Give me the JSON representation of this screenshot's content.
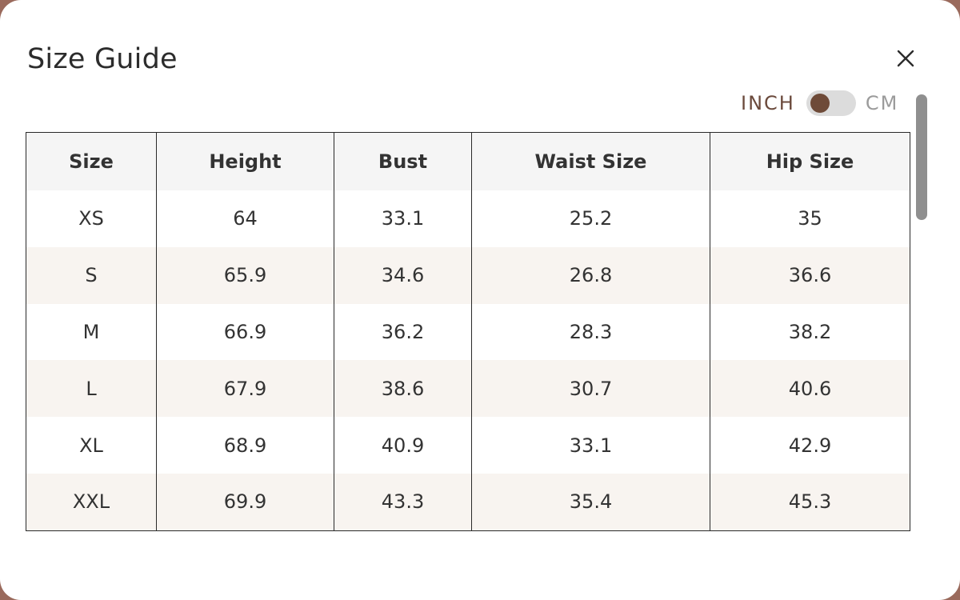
{
  "dialog": {
    "title": "Size Guide",
    "close_icon": "close-icon"
  },
  "units": {
    "inch_label": "INCH",
    "cm_label": "CM",
    "selected": "INCH",
    "accent": "#6e4a38"
  },
  "table": {
    "headers": [
      "Size",
      "Height",
      "Bust",
      "Waist Size",
      "Hip Size"
    ],
    "rows": [
      [
        "XS",
        "64",
        "33.1",
        "25.2",
        "35"
      ],
      [
        "S",
        "65.9",
        "34.6",
        "26.8",
        "36.6"
      ],
      [
        "M",
        "66.9",
        "36.2",
        "28.3",
        "38.2"
      ],
      [
        "L",
        "67.9",
        "38.6",
        "30.7",
        "40.6"
      ],
      [
        "XL",
        "68.9",
        "40.9",
        "33.1",
        "42.9"
      ],
      [
        "XXL",
        "69.9",
        "43.3",
        "35.4",
        "45.3"
      ]
    ]
  }
}
